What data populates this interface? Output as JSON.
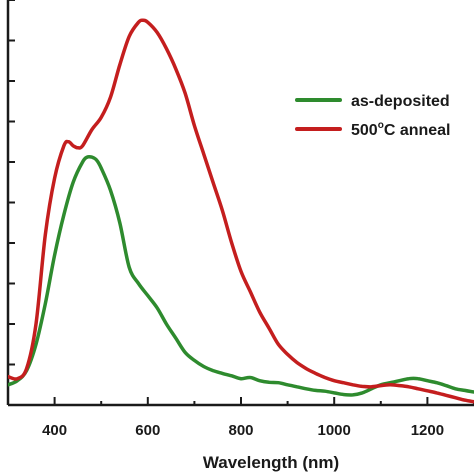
{
  "chart_data": {
    "type": "line",
    "title": "",
    "xlabel": "Wavelength (nm)",
    "ylabel": "",
    "xlim": [
      300,
      1300
    ],
    "ylim": [
      0,
      1.0
    ],
    "x_ticks": [
      400,
      600,
      800,
      1000,
      1200
    ],
    "x_tick_labels": [
      "400",
      "600",
      "800",
      "1000",
      "1200"
    ],
    "y_tick_count": 10,
    "grid": false,
    "legend_position": "right",
    "series": [
      {
        "name": "as-deposited",
        "legend_prefix": "as-deposited",
        "legend_sup": "",
        "legend_suffix": "",
        "color": "#2e8b2e",
        "x": [
          300,
          320,
          340,
          360,
          380,
          400,
          420,
          440,
          460,
          470,
          480,
          490,
          500,
          520,
          540,
          560,
          580,
          600,
          620,
          640,
          660,
          680,
          700,
          720,
          740,
          760,
          780,
          800,
          820,
          840,
          860,
          880,
          900,
          920,
          940,
          960,
          980,
          1000,
          1020,
          1040,
          1060,
          1080,
          1100,
          1120,
          1140,
          1160,
          1180,
          1200,
          1220,
          1240,
          1260,
          1280,
          1300
        ],
        "y": [
          0.05,
          0.06,
          0.085,
          0.15,
          0.25,
          0.37,
          0.47,
          0.55,
          0.6,
          0.612,
          0.612,
          0.605,
          0.585,
          0.53,
          0.45,
          0.34,
          0.3,
          0.27,
          0.24,
          0.2,
          0.165,
          0.13,
          0.11,
          0.095,
          0.085,
          0.078,
          0.072,
          0.065,
          0.068,
          0.06,
          0.056,
          0.055,
          0.05,
          0.045,
          0.04,
          0.036,
          0.034,
          0.03,
          0.026,
          0.025,
          0.03,
          0.04,
          0.05,
          0.055,
          0.06,
          0.065,
          0.065,
          0.06,
          0.055,
          0.048,
          0.04,
          0.036,
          0.032
        ]
      },
      {
        "name": "500°C annealed",
        "legend_prefix": "500",
        "legend_sup": "o",
        "legend_suffix": "C anneal",
        "color": "#c41e1e",
        "x": [
          300,
          320,
          340,
          360,
          380,
          400,
          420,
          430,
          440,
          450,
          460,
          480,
          500,
          520,
          540,
          560,
          580,
          590,
          600,
          620,
          640,
          660,
          680,
          700,
          720,
          740,
          760,
          780,
          800,
          820,
          840,
          860,
          880,
          900,
          920,
          940,
          960,
          980,
          1000,
          1020,
          1040,
          1060,
          1080,
          1100,
          1120,
          1140,
          1160,
          1180,
          1200,
          1220,
          1240,
          1260,
          1280,
          1300
        ],
        "y": [
          0.07,
          0.065,
          0.09,
          0.2,
          0.42,
          0.56,
          0.64,
          0.65,
          0.64,
          0.635,
          0.64,
          0.68,
          0.71,
          0.76,
          0.84,
          0.91,
          0.945,
          0.95,
          0.945,
          0.92,
          0.88,
          0.83,
          0.77,
          0.69,
          0.62,
          0.55,
          0.48,
          0.4,
          0.33,
          0.28,
          0.23,
          0.19,
          0.15,
          0.125,
          0.105,
          0.09,
          0.078,
          0.068,
          0.06,
          0.055,
          0.05,
          0.046,
          0.045,
          0.048,
          0.05,
          0.048,
          0.045,
          0.04,
          0.035,
          0.03,
          0.024,
          0.018,
          0.012,
          0.008
        ]
      }
    ]
  }
}
